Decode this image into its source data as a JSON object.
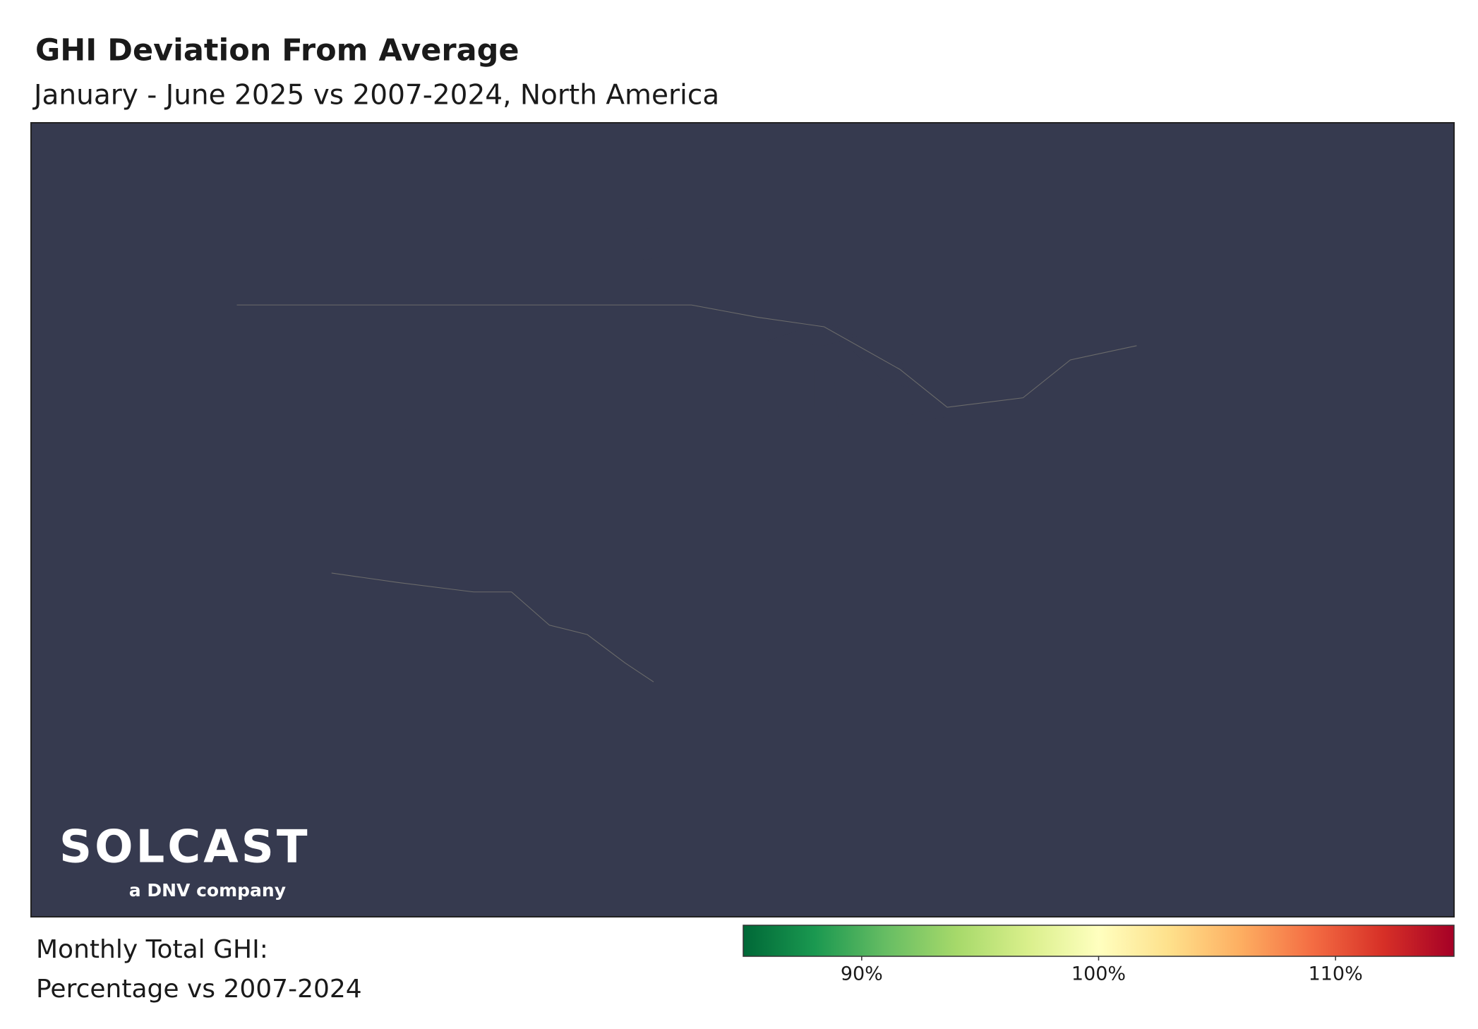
{
  "header": {
    "title": "GHI Deviation From Average",
    "subtitle": "January - June 2025 vs 2007-2024, North America"
  },
  "logo": {
    "name": "SOLCAST",
    "tagline": "a DNV company"
  },
  "legend": {
    "title_lines": [
      "Monthly Total GHI:",
      "Percentage vs 2007-2024"
    ],
    "range": [
      85,
      115
    ],
    "ticks": [
      {
        "value": 90,
        "label": "90%"
      },
      {
        "value": 100,
        "label": "100%"
      },
      {
        "value": 110,
        "label": "110%"
      }
    ],
    "colors": [
      "#006837",
      "#1a9850",
      "#66bd63",
      "#a6d96a",
      "#d9ef8b",
      "#ffffbf",
      "#fee08b",
      "#fdae61",
      "#f46d43",
      "#d73027",
      "#a50026"
    ]
  }
}
